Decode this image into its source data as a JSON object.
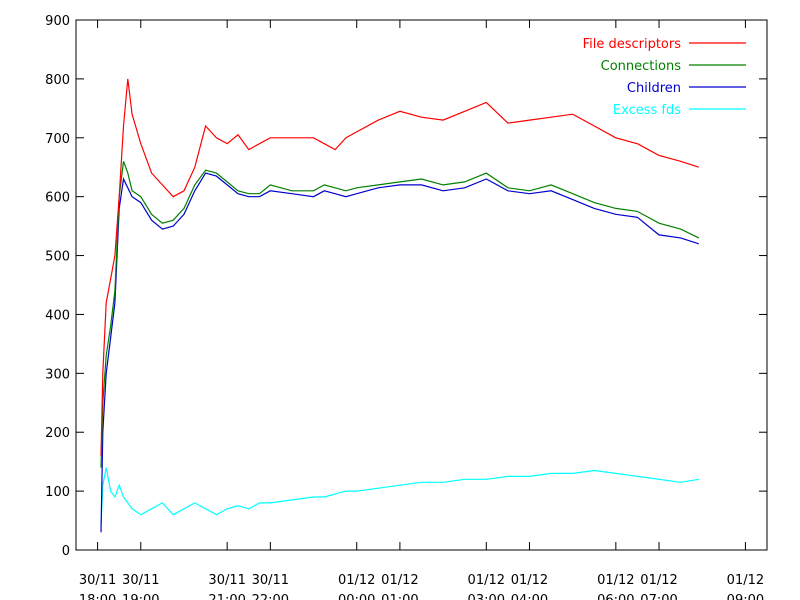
{
  "chart_data": {
    "type": "line",
    "title": "",
    "xlabel": "",
    "ylabel": "",
    "ylim": [
      0,
      900
    ],
    "y_ticks": [
      0,
      100,
      200,
      300,
      400,
      500,
      600,
      700,
      800,
      900
    ],
    "x_unit": "hours since 30/11 18:00",
    "xlim": [
      -0.5,
      15.5
    ],
    "x_ticks": [
      {
        "x": 0,
        "line1": "30/11",
        "line2": "18:00"
      },
      {
        "x": 1,
        "line1": "30/11",
        "line2": "19:00"
      },
      {
        "x": 3,
        "line1": "30/11",
        "line2": "21:00"
      },
      {
        "x": 4,
        "line1": "30/11",
        "line2": "22:00"
      },
      {
        "x": 6,
        "line1": "01/12",
        "line2": "00:00"
      },
      {
        "x": 7,
        "line1": "01/12",
        "line2": "01:00"
      },
      {
        "x": 9,
        "line1": "01/12",
        "line2": "03:00"
      },
      {
        "x": 10,
        "line1": "01/12",
        "line2": "04:00"
      },
      {
        "x": 12,
        "line1": "01/12",
        "line2": "06:00"
      },
      {
        "x": 13,
        "line1": "01/12",
        "line2": "07:00"
      },
      {
        "x": 15,
        "line1": "01/12",
        "line2": "09:00"
      }
    ],
    "grid": false,
    "legend_position": "top-right",
    "series": [
      {
        "name": "File descriptors",
        "color": "#ff0000",
        "x": [
          0.08,
          0.12,
          0.2,
          0.3,
          0.4,
          0.5,
          0.6,
          0.7,
          0.8,
          1.0,
          1.25,
          1.5,
          1.75,
          2.0,
          2.25,
          2.5,
          2.75,
          3.0,
          3.25,
          3.5,
          3.75,
          4.0,
          4.5,
          5.0,
          5.25,
          5.5,
          5.75,
          6.0,
          6.5,
          7.0,
          7.5,
          8.0,
          8.5,
          9.0,
          9.5,
          10.0,
          10.5,
          11.0,
          11.5,
          12.0,
          12.5,
          13.0,
          13.5,
          13.92
        ],
        "y": [
          160,
          300,
          420,
          460,
          500,
          600,
          720,
          800,
          740,
          690,
          640,
          620,
          600,
          610,
          650,
          720,
          700,
          690,
          705,
          680,
          690,
          700,
          700,
          700,
          690,
          680,
          700,
          710,
          730,
          745,
          735,
          730,
          745,
          760,
          725,
          730,
          735,
          740,
          720,
          700,
          690,
          670,
          660,
          650
        ]
      },
      {
        "name": "Connections",
        "color": "#008000",
        "x": [
          0.08,
          0.12,
          0.2,
          0.3,
          0.4,
          0.5,
          0.6,
          0.7,
          0.8,
          1.0,
          1.25,
          1.5,
          1.75,
          2.0,
          2.25,
          2.5,
          2.75,
          3.0,
          3.25,
          3.5,
          3.75,
          4.0,
          4.5,
          5.0,
          5.25,
          5.5,
          5.75,
          6.0,
          6.5,
          7.0,
          7.5,
          8.0,
          8.5,
          9.0,
          9.5,
          10.0,
          10.5,
          11.0,
          11.5,
          12.0,
          12.5,
          13.0,
          13.5,
          13.92
        ],
        "y": [
          140,
          250,
          330,
          380,
          440,
          600,
          660,
          640,
          610,
          600,
          570,
          555,
          560,
          580,
          620,
          645,
          640,
          625,
          610,
          605,
          605,
          620,
          610,
          610,
          620,
          615,
          610,
          615,
          620,
          625,
          630,
          620,
          625,
          640,
          615,
          610,
          620,
          605,
          590,
          580,
          575,
          555,
          545,
          530
        ]
      },
      {
        "name": "Children",
        "color": "#0000cd",
        "x": [
          0.08,
          0.12,
          0.2,
          0.3,
          0.4,
          0.5,
          0.6,
          0.7,
          0.8,
          1.0,
          1.25,
          1.5,
          1.75,
          2.0,
          2.25,
          2.5,
          2.75,
          3.0,
          3.25,
          3.5,
          3.75,
          4.0,
          4.5,
          5.0,
          5.25,
          5.5,
          5.75,
          6.0,
          6.5,
          7.0,
          7.5,
          8.0,
          8.5,
          9.0,
          9.5,
          10.0,
          10.5,
          11.0,
          11.5,
          12.0,
          12.5,
          13.0,
          13.5,
          13.92
        ],
        "y": [
          30,
          200,
          300,
          360,
          420,
          580,
          630,
          615,
          600,
          590,
          560,
          545,
          550,
          570,
          610,
          640,
          635,
          620,
          605,
          600,
          600,
          610,
          605,
          600,
          610,
          605,
          600,
          605,
          615,
          620,
          620,
          610,
          615,
          630,
          610,
          605,
          610,
          595,
          580,
          570,
          565,
          535,
          530,
          520
        ]
      },
      {
        "name": "Excess fds",
        "color": "#00ffff",
        "x": [
          0.08,
          0.12,
          0.2,
          0.3,
          0.4,
          0.5,
          0.6,
          0.7,
          0.8,
          1.0,
          1.25,
          1.5,
          1.75,
          2.0,
          2.25,
          2.5,
          2.75,
          3.0,
          3.25,
          3.5,
          3.75,
          4.0,
          4.5,
          5.0,
          5.25,
          5.5,
          5.75,
          6.0,
          6.5,
          7.0,
          7.5,
          8.0,
          8.5,
          9.0,
          9.5,
          10.0,
          10.5,
          11.0,
          11.5,
          12.0,
          12.5,
          13.0,
          13.5,
          13.92
        ],
        "y": [
          40,
          110,
          140,
          100,
          90,
          110,
          90,
          80,
          70,
          60,
          70,
          80,
          60,
          70,
          80,
          70,
          60,
          70,
          75,
          70,
          80,
          80,
          85,
          90,
          90,
          95,
          100,
          100,
          105,
          110,
          115,
          115,
          120,
          120,
          125,
          125,
          130,
          130,
          135,
          130,
          125,
          120,
          115,
          120
        ]
      }
    ]
  }
}
